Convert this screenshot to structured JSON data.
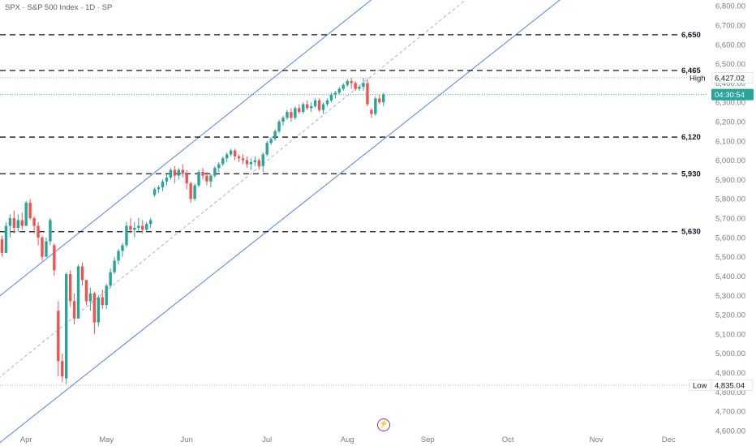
{
  "header": {
    "title": "SPX · S&P 500 Index · 1D · SP"
  },
  "icons": {
    "bottom_marker": "lightning-icon"
  },
  "colors": {
    "up": "#26a69a",
    "down": "#ef5350",
    "channel": "#5b8def",
    "midline": "#a9bbd9",
    "price_badge": "#26a69a"
  },
  "chart_data": {
    "type": "candlestick",
    "title": "",
    "symbol": "SPX",
    "name": "S&P 500 Index",
    "interval": "1D",
    "exchange": "SP",
    "ylim": [
      4520,
      6830
    ],
    "y_ticks": [
      4600,
      4700,
      4800,
      4900,
      5000,
      5100,
      5200,
      5300,
      5400,
      5500,
      5600,
      5700,
      5800,
      5900,
      6000,
      6100,
      6200,
      6300,
      6400,
      6500,
      6600,
      6700,
      6800
    ],
    "y_tick_labels": [
      "4,600.00",
      "4,700.00",
      "4,800.00",
      "4,900.00",
      "5,000.00",
      "5,100.00",
      "5,200.00",
      "5,300.00",
      "5,400.00",
      "5,500.00",
      "5,600.00",
      "5,700.00",
      "5,800.00",
      "5,900.00",
      "6,000.00",
      "6,100.00",
      "6,200.00",
      "6,300.00",
      "6,400.00",
      "6,500.00",
      "6,600.00",
      "6,700.00",
      "6,800.00"
    ],
    "x_ticks": [
      {
        "label": "Apr",
        "bar": 6
      },
      {
        "label": "May",
        "bar": 26
      },
      {
        "label": "Jun",
        "bar": 46
      },
      {
        "label": "Jul",
        "bar": 66
      },
      {
        "label": "Aug",
        "bar": 86
      },
      {
        "label": "Sep",
        "bar": 106
      },
      {
        "label": "Oct",
        "bar": 126
      },
      {
        "label": "Nov",
        "bar": 148
      },
      {
        "label": "Dec",
        "bar": 166
      }
    ],
    "horizontal_levels": [
      {
        "value": 6650,
        "label": "6,650"
      },
      {
        "value": 6465,
        "label": "6,465"
      },
      {
        "value": 6120,
        "label": "6,120"
      },
      {
        "value": 5930,
        "label": "5,930"
      },
      {
        "value": 5630,
        "label": "5,630"
      }
    ],
    "high": {
      "tag": "High",
      "value": 6427.02,
      "label": "6,427.02"
    },
    "low": {
      "tag": "Low",
      "value": 4835.04,
      "label": "4,835.04"
    },
    "last": {
      "value": 6340,
      "label": "04:30:54"
    },
    "channel": {
      "upper": [
        {
          "bar": -1,
          "value": 5290
        },
        {
          "bar": 93,
          "value": 6848
        }
      ],
      "middle": [
        {
          "bar": -1,
          "value": 4870
        },
        {
          "bar": 116,
          "value": 6840
        }
      ],
      "lower": [
        {
          "bar": -1,
          "value": 4530
        },
        {
          "bar": 140,
          "value": 6848
        }
      ]
    },
    "candles": [
      [
        5590,
        5610,
        5500,
        5520
      ],
      [
        5520,
        5680,
        5520,
        5660
      ],
      [
        5660,
        5720,
        5600,
        5700
      ],
      [
        5700,
        5740,
        5620,
        5650
      ],
      [
        5650,
        5720,
        5630,
        5690
      ],
      [
        5690,
        5730,
        5640,
        5660
      ],
      [
        5660,
        5790,
        5660,
        5780
      ],
      [
        5780,
        5800,
        5690,
        5700
      ],
      [
        5700,
        5710,
        5620,
        5660
      ],
      [
        5660,
        5680,
        5560,
        5600
      ],
      [
        5600,
        5610,
        5480,
        5500
      ],
      [
        5500,
        5600,
        5500,
        5580
      ],
      [
        5580,
        5700,
        5560,
        5690
      ],
      [
        5560,
        5570,
        5400,
        5430
      ],
      [
        5220,
        5270,
        4880,
        4960
      ],
      [
        4960,
        5000,
        4850,
        4880
      ],
      [
        4870,
        5420,
        4840,
        5410
      ],
      [
        5410,
        5430,
        5240,
        5270
      ],
      [
        5270,
        5310,
        5150,
        5180
      ],
      [
        5180,
        5460,
        5180,
        5450
      ],
      [
        5450,
        5470,
        5350,
        5380
      ],
      [
        5380,
        5380,
        5250,
        5270
      ],
      [
        5270,
        5340,
        5220,
        5310
      ],
      [
        5310,
        5320,
        5100,
        5160
      ],
      [
        5160,
        5300,
        5140,
        5290
      ],
      [
        5290,
        5330,
        5230,
        5250
      ],
      [
        5250,
        5360,
        5230,
        5350
      ],
      [
        5350,
        5440,
        5340,
        5420
      ],
      [
        5420,
        5500,
        5410,
        5480
      ],
      [
        5480,
        5540,
        5460,
        5530
      ],
      [
        5530,
        5570,
        5500,
        5560
      ],
      [
        5560,
        5680,
        5550,
        5660
      ],
      [
        5660,
        5700,
        5620,
        5640
      ],
      [
        5640,
        5680,
        5600,
        5650
      ],
      [
        5650,
        5700,
        5630,
        5660
      ],
      [
        5660,
        5690,
        5620,
        5640
      ],
      [
        5640,
        5680,
        5630,
        5670
      ],
      [
        5670,
        5700,
        5650,
        5690
      ],
      [
        5820,
        5860,
        5810,
        5850
      ],
      [
        5850,
        5870,
        5830,
        5860
      ],
      [
        5860,
        5900,
        5840,
        5890
      ],
      [
        5890,
        5930,
        5870,
        5910
      ],
      [
        5910,
        5960,
        5900,
        5950
      ],
      [
        5950,
        5970,
        5880,
        5920
      ],
      [
        5920,
        5960,
        5900,
        5950
      ],
      [
        5950,
        5980,
        5910,
        5930
      ],
      [
        5930,
        5950,
        5850,
        5880
      ],
      [
        5880,
        5890,
        5780,
        5800
      ],
      [
        5800,
        5880,
        5790,
        5870
      ],
      [
        5870,
        5950,
        5860,
        5940
      ],
      [
        5940,
        5960,
        5900,
        5920
      ],
      [
        5920,
        5940,
        5870,
        5890
      ],
      [
        5890,
        5930,
        5860,
        5920
      ],
      [
        5920,
        5970,
        5910,
        5960
      ],
      [
        5960,
        5990,
        5940,
        5980
      ],
      [
        5980,
        6020,
        5970,
        6010
      ],
      [
        6010,
        6040,
        5990,
        6030
      ],
      [
        6030,
        6060,
        6020,
        6050
      ],
      [
        6050,
        6060,
        6000,
        6020
      ],
      [
        6020,
        6030,
        5990,
        6010
      ],
      [
        6010,
        6030,
        5980,
        6000
      ],
      [
        6000,
        6020,
        5960,
        5980
      ],
      [
        5980,
        6010,
        5950,
        5990
      ],
      [
        5990,
        6020,
        5970,
        6000
      ],
      [
        6000,
        6010,
        5950,
        5970
      ],
      [
        5970,
        6040,
        5940,
        6030
      ],
      [
        6030,
        6100,
        6020,
        6090
      ],
      [
        6090,
        6120,
        6080,
        6110
      ],
      [
        6110,
        6160,
        6100,
        6150
      ],
      [
        6150,
        6210,
        6140,
        6200
      ],
      [
        6200,
        6230,
        6180,
        6220
      ],
      [
        6220,
        6260,
        6210,
        6250
      ],
      [
        6250,
        6270,
        6200,
        6220
      ],
      [
        6220,
        6280,
        6210,
        6270
      ],
      [
        6270,
        6290,
        6240,
        6250
      ],
      [
        6250,
        6300,
        6240,
        6290
      ],
      [
        6290,
        6310,
        6260,
        6270
      ],
      [
        6270,
        6300,
        6250,
        6280
      ],
      [
        6280,
        6320,
        6270,
        6310
      ],
      [
        6310,
        6320,
        6250,
        6260
      ],
      [
        6260,
        6300,
        6240,
        6290
      ],
      [
        6290,
        6320,
        6280,
        6310
      ],
      [
        6310,
        6350,
        6300,
        6340
      ],
      [
        6340,
        6360,
        6320,
        6350
      ],
      [
        6350,
        6380,
        6340,
        6370
      ],
      [
        6370,
        6400,
        6360,
        6390
      ],
      [
        6390,
        6420,
        6380,
        6410
      ],
      [
        6410,
        6427,
        6370,
        6400
      ],
      [
        6400,
        6410,
        6360,
        6370
      ],
      [
        6370,
        6390,
        6360,
        6380
      ],
      [
        6380,
        6427,
        6360,
        6400
      ],
      [
        6400,
        6420,
        6280,
        6290
      ],
      [
        6260,
        6270,
        6220,
        6240
      ],
      [
        6240,
        6330,
        6230,
        6320
      ],
      [
        6320,
        6340,
        6290,
        6300
      ],
      [
        6300,
        6350,
        6280,
        6340
      ]
    ]
  }
}
